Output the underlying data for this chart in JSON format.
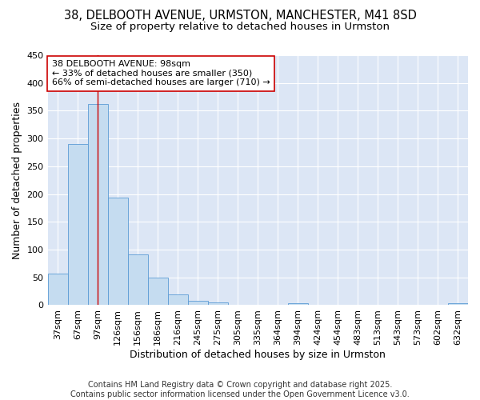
{
  "title1": "38, DELBOOTH AVENUE, URMSTON, MANCHESTER, M41 8SD",
  "title2": "Size of property relative to detached houses in Urmston",
  "xlabel": "Distribution of detached houses by size in Urmston",
  "ylabel": "Number of detached properties",
  "categories": [
    "37sqm",
    "67sqm",
    "97sqm",
    "126sqm",
    "156sqm",
    "186sqm",
    "216sqm",
    "245sqm",
    "275sqm",
    "305sqm",
    "335sqm",
    "364sqm",
    "394sqm",
    "424sqm",
    "454sqm",
    "483sqm",
    "513sqm",
    "543sqm",
    "573sqm",
    "602sqm",
    "632sqm"
  ],
  "values": [
    57,
    290,
    362,
    193,
    92,
    50,
    20,
    8,
    5,
    1,
    0,
    0,
    3,
    0,
    0,
    0,
    0,
    0,
    0,
    0,
    3
  ],
  "bar_color": "#c5dcf0",
  "bar_edge_color": "#5b9bd5",
  "vline_x_index": 2,
  "vline_color": "#cc0000",
  "annotation_text": "38 DELBOOTH AVENUE: 98sqm\n← 33% of detached houses are smaller (350)\n66% of semi-detached houses are larger (710) →",
  "annotation_box_color": "#ffffff",
  "annotation_box_edge_color": "#cc0000",
  "ylim": [
    0,
    450
  ],
  "yticks": [
    0,
    50,
    100,
    150,
    200,
    250,
    300,
    350,
    400,
    450
  ],
  "fig_bg_color": "#ffffff",
  "plot_bg_color": "#dce6f5",
  "grid_color": "#ffffff",
  "footer": "Contains HM Land Registry data © Crown copyright and database right 2025.\nContains public sector information licensed under the Open Government Licence v3.0.",
  "title_fontsize": 10.5,
  "subtitle_fontsize": 9.5,
  "axis_label_fontsize": 9,
  "tick_fontsize": 8,
  "annotation_fontsize": 8,
  "footer_fontsize": 7
}
